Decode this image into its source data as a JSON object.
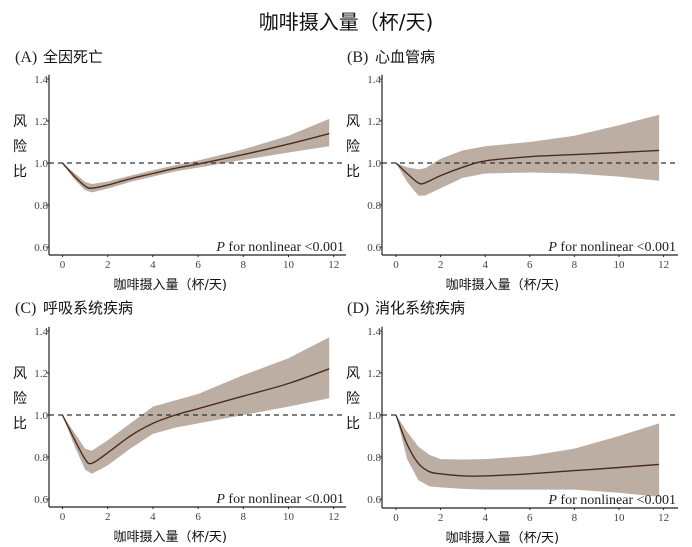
{
  "chart_data": {
    "type": "line",
    "title": "咖啡摄入量（杯/天)",
    "colors": {
      "line": "#4a2c1e",
      "band": "#bdaea4",
      "ref": "#333333",
      "axis": "#222222"
    },
    "panels": [
      {
        "id": "A",
        "label": "(A)",
        "title": "全因死亡",
        "xlabel": "咖啡摄入量（杯/天)",
        "ylabel": [
          "风",
          "险",
          "比"
        ],
        "xlim": [
          -0.5,
          12.5
        ],
        "ylim": [
          0.58,
          1.42
        ],
        "xticks": [
          "0",
          "2",
          "4",
          "6",
          "8",
          "10",
          "12"
        ],
        "yticks": [
          "0.6",
          "0.8",
          "1.0",
          "1.2",
          "1.4"
        ],
        "reference": 1.0,
        "annotation_p": "P",
        "annotation_rest": " for nonlinear <0.001",
        "x": [
          0,
          0.5,
          1.0,
          1.3,
          2,
          3,
          4,
          5,
          6,
          8,
          10,
          11.8
        ],
        "y": [
          1.0,
          0.94,
          0.89,
          0.88,
          0.895,
          0.925,
          0.95,
          0.975,
          0.995,
          1.04,
          1.09,
          1.14
        ],
        "upper": [
          1.0,
          0.955,
          0.91,
          0.9,
          0.912,
          0.94,
          0.965,
          0.99,
          1.012,
          1.065,
          1.13,
          1.21
        ],
        "lower": [
          1.0,
          0.925,
          0.87,
          0.86,
          0.878,
          0.91,
          0.935,
          0.96,
          0.978,
          1.015,
          1.05,
          1.08
        ]
      },
      {
        "id": "B",
        "label": "(B)",
        "title": "心血管病",
        "xlabel": "咖啡摄入量（杯/天)",
        "ylabel": [
          "风",
          "险",
          "比"
        ],
        "xlim": [
          -0.5,
          12.5
        ],
        "ylim": [
          0.58,
          1.42
        ],
        "xticks": [
          "0",
          "2",
          "4",
          "6",
          "8",
          "10",
          "12"
        ],
        "yticks": [
          "0.6",
          "0.8",
          "1.0",
          "1.2",
          "1.4"
        ],
        "reference": 1.0,
        "annotation_p": "P",
        "annotation_rest": " for nonlinear <0.001",
        "x": [
          0,
          0.5,
          1.0,
          1.3,
          2,
          3,
          4,
          6,
          8,
          10,
          11.8
        ],
        "y": [
          1.0,
          0.95,
          0.905,
          0.905,
          0.94,
          0.98,
          1.01,
          1.03,
          1.04,
          1.05,
          1.06
        ],
        "upper": [
          1.0,
          0.98,
          0.97,
          0.975,
          1.02,
          1.06,
          1.08,
          1.1,
          1.13,
          1.18,
          1.23
        ],
        "lower": [
          1.0,
          0.91,
          0.845,
          0.845,
          0.88,
          0.93,
          0.95,
          0.955,
          0.95,
          0.935,
          0.915
        ]
      },
      {
        "id": "C",
        "label": "(C)",
        "title": "呼吸系统疾病",
        "xlabel": "咖啡摄入量（杯/天)",
        "ylabel": [
          "风",
          "险",
          "比"
        ],
        "xlim": [
          -0.5,
          12.5
        ],
        "ylim": [
          0.58,
          1.42
        ],
        "xticks": [
          "0",
          "2",
          "4",
          "6",
          "8",
          "10",
          "12"
        ],
        "yticks": [
          "0.6",
          "0.8",
          "1.0",
          "1.2",
          "1.4"
        ],
        "reference": 1.0,
        "annotation_p": "P",
        "annotation_rest": " for nonlinear <0.001",
        "x": [
          0,
          0.5,
          1.0,
          1.3,
          2,
          3,
          4,
          5,
          6,
          8,
          10,
          11.8
        ],
        "y": [
          1.0,
          0.89,
          0.79,
          0.77,
          0.82,
          0.9,
          0.96,
          1.0,
          1.03,
          1.09,
          1.15,
          1.22
        ],
        "upper": [
          1.0,
          0.92,
          0.84,
          0.83,
          0.88,
          0.96,
          1.04,
          1.07,
          1.1,
          1.19,
          1.27,
          1.37
        ],
        "lower": [
          1.0,
          0.86,
          0.74,
          0.72,
          0.76,
          0.84,
          0.91,
          0.94,
          0.96,
          1.0,
          1.04,
          1.08
        ]
      },
      {
        "id": "D",
        "label": "(D)",
        "title": "消化系统疾病",
        "xlabel": "咖啡摄入量（杯/天)",
        "ylabel": [
          "风",
          "险",
          "比"
        ],
        "xlim": [
          -0.5,
          12.5
        ],
        "ylim": [
          0.58,
          1.42
        ],
        "xticks": [
          "0",
          "2",
          "4",
          "6",
          "8",
          "10",
          "12"
        ],
        "yticks": [
          "0.6",
          "0.8",
          "1.0",
          "1.2",
          "1.4"
        ],
        "reference": 1.0,
        "annotation_p": "P",
        "annotation_rest": " for nonlinear <0.001",
        "x": [
          0,
          0.5,
          1.0,
          1.5,
          2,
          3,
          4,
          6,
          8,
          10,
          11.8
        ],
        "y": [
          1.0,
          0.86,
          0.77,
          0.73,
          0.72,
          0.71,
          0.71,
          0.72,
          0.735,
          0.75,
          0.765
        ],
        "upper": [
          1.0,
          0.92,
          0.85,
          0.81,
          0.79,
          0.788,
          0.79,
          0.805,
          0.84,
          0.9,
          0.96
        ],
        "lower": [
          1.0,
          0.79,
          0.69,
          0.66,
          0.655,
          0.648,
          0.645,
          0.645,
          0.645,
          0.63,
          0.61
        ]
      }
    ]
  }
}
